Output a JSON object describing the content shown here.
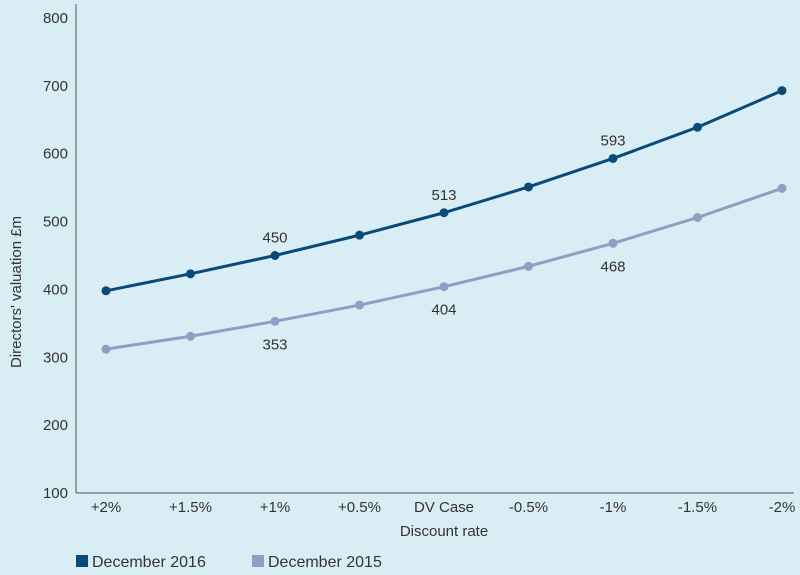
{
  "chart_data": {
    "type": "line",
    "title": "",
    "xlabel": "Discount rate",
    "ylabel": "Directors' valuation  £m",
    "ylim": [
      100,
      800
    ],
    "yticks": [
      100,
      200,
      300,
      400,
      500,
      600,
      700,
      800
    ],
    "categories": [
      "+2%",
      "+1.5%",
      "+1%",
      "+0.5%",
      "DV Case",
      "-0.5%",
      "-1%",
      "-1.5%",
      "-2%"
    ],
    "grid": false,
    "legend_position": "bottom-left",
    "series": [
      {
        "name": "December 2016",
        "color": "#0a4a78",
        "values": [
          398,
          423,
          450,
          480,
          513,
          551,
          593,
          639,
          693
        ],
        "labels": {
          "2": "450",
          "4": "513",
          "6": "593"
        },
        "label_side": "above"
      },
      {
        "name": "December 2015",
        "color": "#8e9fc3",
        "values": [
          312,
          331,
          353,
          377,
          404,
          434,
          468,
          506,
          549
        ],
        "labels": {
          "2": "353",
          "4": "404",
          "6": "468"
        },
        "label_side": "below"
      }
    ]
  }
}
